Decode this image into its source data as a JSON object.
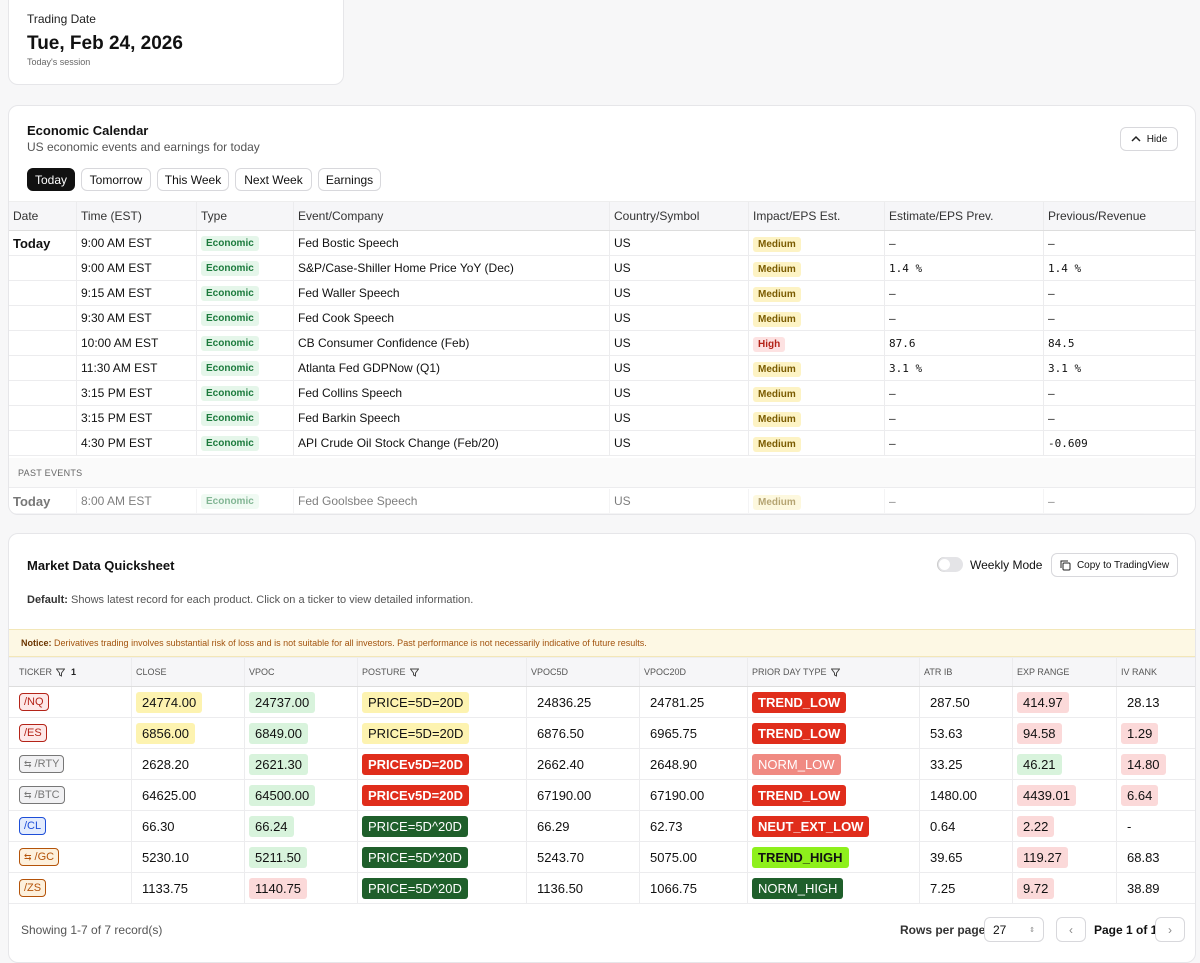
{
  "trading_date": {
    "label": "Trading Date",
    "date": "Tue, Feb 24, 2026",
    "note": "Today's session"
  },
  "calendar": {
    "title": "Economic Calendar",
    "subtitle": "US economic events and earnings for today",
    "hide": "Hide",
    "tabs": [
      "Today",
      "Tomorrow",
      "This Week",
      "Next Week",
      "Earnings"
    ],
    "columns": [
      "Date",
      "Time (EST)",
      "Type",
      "Event/Company",
      "Country/Symbol",
      "Impact/EPS Est.",
      "Estimate/EPS Prev.",
      "Previous/Revenue"
    ],
    "date_group": "Today",
    "rows": [
      [
        "9:00 AM EST",
        "Economic",
        "Fed Bostic Speech",
        "US",
        "Medium",
        "–",
        "–"
      ],
      [
        "9:00 AM EST",
        "Economic",
        "S&P/Case-Shiller Home Price YoY (Dec)",
        "US",
        "Medium",
        "1.4 %",
        "1.4 %"
      ],
      [
        "9:15 AM EST",
        "Economic",
        "Fed Waller Speech",
        "US",
        "Medium",
        "–",
        "–"
      ],
      [
        "9:30 AM EST",
        "Economic",
        "Fed Cook Speech",
        "US",
        "Medium",
        "–",
        "–"
      ],
      [
        "10:00 AM EST",
        "Economic",
        "CB Consumer Confidence (Feb)",
        "US",
        "High",
        "87.6",
        "84.5"
      ],
      [
        "11:30 AM EST",
        "Economic",
        "Atlanta Fed GDPNow (Q1)",
        "US",
        "Medium",
        "3.1 %",
        "3.1 %"
      ],
      [
        "3:15 PM EST",
        "Economic",
        "Fed Collins Speech",
        "US",
        "Medium",
        "–",
        "–"
      ],
      [
        "3:15 PM EST",
        "Economic",
        "Fed Barkin Speech",
        "US",
        "Medium",
        "–",
        "–"
      ],
      [
        "4:30 PM EST",
        "Economic",
        "API Crude Oil Stock Change (Feb/20)",
        "US",
        "Medium",
        "–",
        "-0.609"
      ]
    ],
    "past_label": "PAST EVENTS",
    "past_date": "Today",
    "past_rows": [
      [
        "8:00 AM EST",
        "Economic",
        "Fed Goolsbee Speech",
        "US",
        "Medium",
        "–",
        "–"
      ]
    ]
  },
  "quicksheet": {
    "title": "Market Data Quicksheet",
    "weekly_mode": "Weekly Mode",
    "copy": "Copy to TradingView",
    "default_label": "Default:",
    "default_text": "Shows latest record for each product. Click on a ticker to view detailed information.",
    "notice_label": "Notice:",
    "notice_text": "Derivatives trading involves substantial risk of loss and is not suitable for all investors. Past performance is not necessarily indicative of future results.",
    "columns": [
      "TICKER",
      "CLOSE",
      "VPOC",
      "POSTURE",
      "VPOC5D",
      "VPOC20D",
      "PRIOR DAY TYPE",
      "ATR IB",
      "EXP RANGE",
      "IV RANK"
    ],
    "filter_count": "1",
    "rows": [
      [
        "/NQ",
        "24774.00",
        "24737.00",
        "PRICE=5D=20D",
        "24836.25",
        "24781.25",
        "TREND_LOW",
        "287.50",
        "414.97",
        "28.13"
      ],
      [
        "/ES",
        "6856.00",
        "6849.00",
        "PRICE=5D=20D",
        "6876.50",
        "6965.75",
        "TREND_LOW",
        "53.63",
        "94.58",
        "1.29"
      ],
      [
        "/RTY",
        "2628.20",
        "2621.30",
        "PRICEv5D=20D",
        "2662.40",
        "2648.90",
        "NORM_LOW",
        "33.25",
        "46.21",
        "14.80"
      ],
      [
        "/BTC",
        "64625.00",
        "64500.00",
        "PRICEv5D=20D",
        "67190.00",
        "67190.00",
        "TREND_LOW",
        "1480.00",
        "4439.01",
        "6.64"
      ],
      [
        "/CL",
        "66.30",
        "66.24",
        "PRICE=5D^20D",
        "66.29",
        "62.73",
        "NEUT_EXT_LOW",
        "0.64",
        "2.22",
        "-"
      ],
      [
        "/GC",
        "5230.10",
        "5211.50",
        "PRICE=5D^20D",
        "5243.70",
        "5075.00",
        "TREND_HIGH",
        "39.65",
        "119.27",
        "68.83"
      ],
      [
        "/ZS",
        "1133.75",
        "1140.75",
        "PRICE=5D^20D",
        "1136.50",
        "1066.75",
        "NORM_HIGH",
        "7.25",
        "9.72",
        "38.89"
      ]
    ],
    "showing": "Showing 1-7 of 7 record(s)",
    "rows_per_page_label": "Rows per page:",
    "rows_per_page": "27",
    "page": "Page 1 of 1"
  }
}
